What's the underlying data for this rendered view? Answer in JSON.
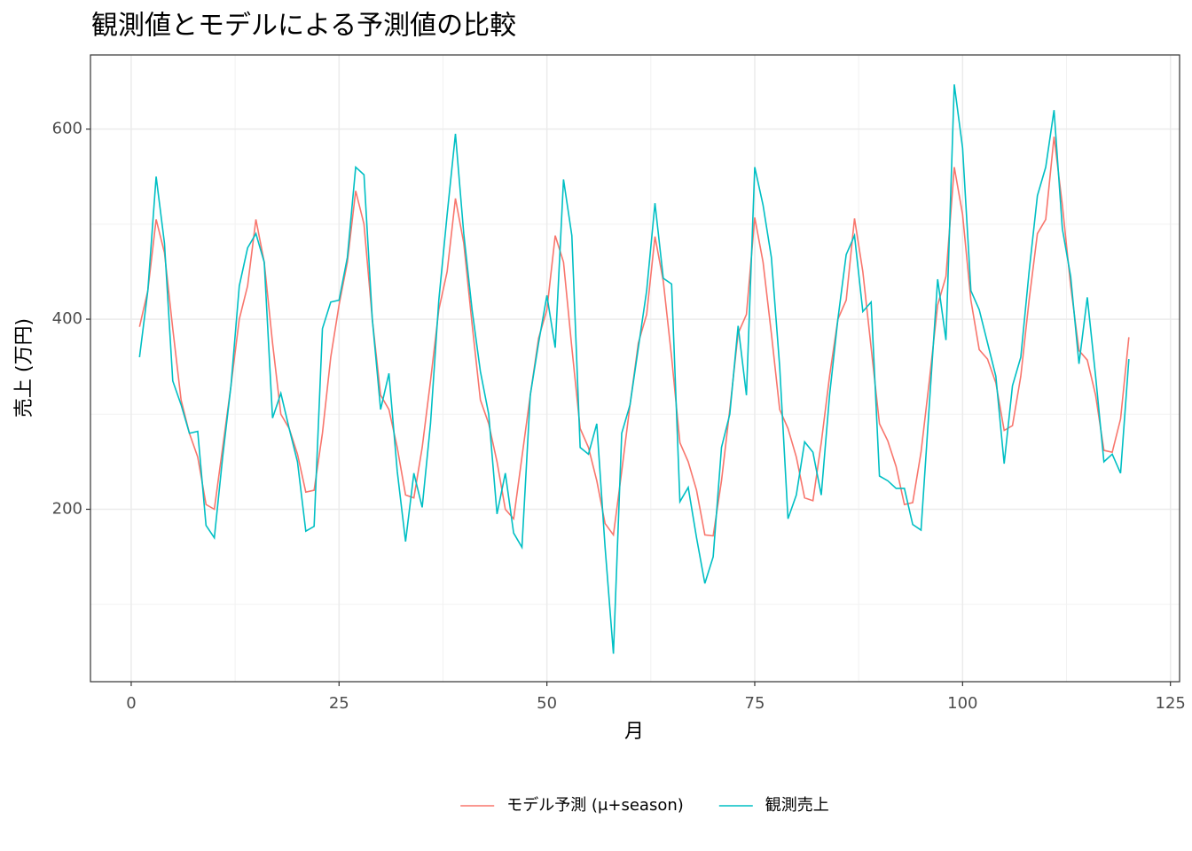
{
  "chart_data": {
    "type": "line",
    "title": "観測値とモデルによる予測値の比較",
    "x_label": "月",
    "y_label": "売上 (万円)",
    "x": [
      1,
      2,
      3,
      4,
      5,
      6,
      7,
      8,
      9,
      10,
      11,
      12,
      13,
      14,
      15,
      16,
      17,
      18,
      19,
      20,
      21,
      22,
      23,
      24,
      25,
      26,
      27,
      28,
      29,
      30,
      31,
      32,
      33,
      34,
      35,
      36,
      37,
      38,
      39,
      40,
      41,
      42,
      43,
      44,
      45,
      46,
      47,
      48,
      49,
      50,
      51,
      52,
      53,
      54,
      55,
      56,
      57,
      58,
      59,
      60,
      61,
      62,
      63,
      64,
      65,
      66,
      67,
      68,
      69,
      70,
      71,
      72,
      73,
      74,
      75,
      76,
      77,
      78,
      79,
      80,
      81,
      82,
      83,
      84,
      85,
      86,
      87,
      88,
      89,
      90,
      91,
      92,
      93,
      94,
      95,
      96,
      97,
      98,
      99,
      100,
      101,
      102,
      103,
      104,
      105,
      106,
      107,
      108,
      109,
      110,
      111,
      112,
      113,
      114,
      115,
      116,
      117,
      118,
      119,
      120
    ],
    "series": [
      {
        "name": "モデル予測 (μ+season)",
        "color": "#F8766D",
        "values": [
          392,
          430,
          505,
          470,
          390,
          315,
          280,
          255,
          205,
          200,
          265,
          330,
          400,
          435,
          505,
          460,
          375,
          300,
          285,
          258,
          218,
          220,
          280,
          360,
          415,
          460,
          535,
          500,
          400,
          320,
          305,
          265,
          215,
          212,
          265,
          335,
          410,
          450,
          527,
          480,
          395,
          315,
          290,
          250,
          200,
          190,
          255,
          320,
          380,
          410,
          488,
          460,
          370,
          285,
          265,
          230,
          185,
          173,
          240,
          310,
          375,
          405,
          487,
          440,
          360,
          270,
          250,
          220,
          173,
          172,
          230,
          305,
          385,
          405,
          507,
          460,
          385,
          305,
          285,
          255,
          212,
          209,
          270,
          340,
          400,
          420,
          506,
          450,
          370,
          290,
          272,
          245,
          205,
          207,
          260,
          335,
          415,
          445,
          560,
          510,
          420,
          368,
          358,
          333,
          283,
          288,
          340,
          420,
          490,
          505,
          592,
          520,
          435,
          367,
          357,
          320,
          262,
          260,
          295,
          381
        ]
      },
      {
        "name": "観測売上",
        "color": "#00BFC4",
        "values": [
          360,
          430,
          550,
          480,
          335,
          310,
          280,
          282,
          183,
          170,
          255,
          330,
          435,
          475,
          490,
          460,
          296,
          322,
          285,
          250,
          177,
          182,
          390,
          418,
          420,
          465,
          560,
          552,
          400,
          305,
          343,
          240,
          166,
          238,
          202,
          290,
          420,
          510,
          595,
          490,
          410,
          345,
          300,
          195,
          238,
          175,
          160,
          320,
          375,
          425,
          370,
          547,
          488,
          265,
          258,
          290,
          160,
          48,
          280,
          310,
          370,
          430,
          522,
          443,
          437,
          208,
          223,
          170,
          122,
          150,
          265,
          300,
          393,
          320,
          560,
          520,
          465,
          350,
          190,
          215,
          271,
          260,
          215,
          320,
          400,
          468,
          488,
          408,
          418,
          235,
          230,
          222,
          222,
          184,
          178,
          310,
          442,
          378,
          647,
          580,
          430,
          410,
          375,
          340,
          248,
          330,
          360,
          450,
          530,
          560,
          620,
          495,
          445,
          353,
          423,
          340,
          250,
          258,
          238,
          358
        ]
      }
    ],
    "xlim": [
      -4.9,
      126.1
    ],
    "ylim": [
      18.6,
      678
    ],
    "xticks": [
      0,
      25,
      50,
      75,
      100,
      125
    ],
    "yticks": [
      200,
      400,
      600
    ],
    "grid": true,
    "legend_position": "bottom"
  }
}
